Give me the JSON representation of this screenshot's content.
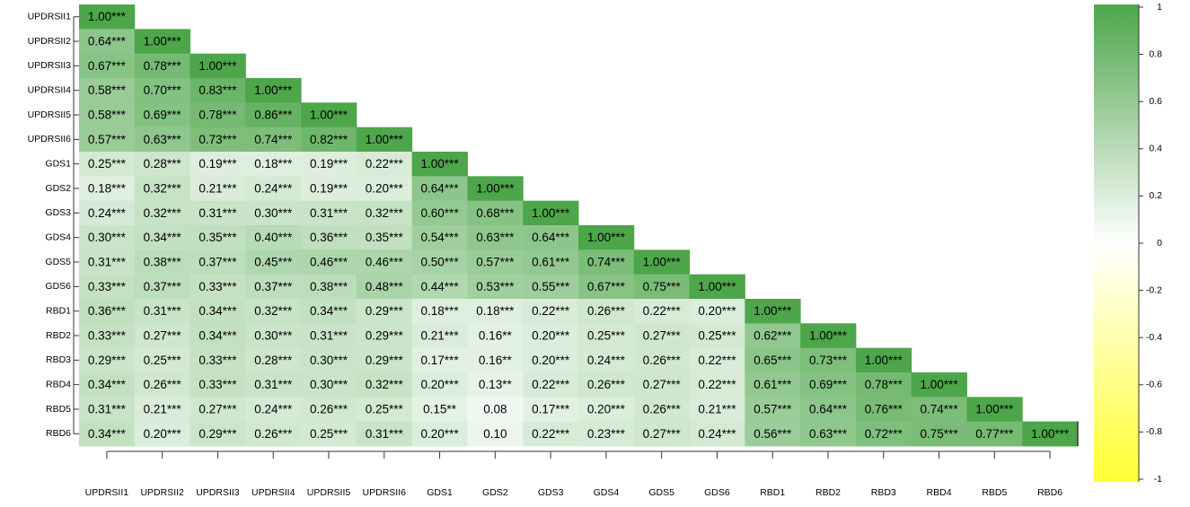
{
  "chart_data": {
    "type": "heatmap",
    "categories": [
      "UPDRSII1",
      "UPDRSII2",
      "UPDRSII3",
      "UPDRSII4",
      "UPDRSII5",
      "UPDRSII6",
      "GDS1",
      "GDS2",
      "GDS3",
      "GDS4",
      "GDS5",
      "GDS6",
      "RBD1",
      "RBD2",
      "RBD3",
      "RBD4",
      "RBD5",
      "RBD6"
    ],
    "values": [
      [
        1
      ],
      [
        0.64,
        1
      ],
      [
        0.67,
        0.78,
        1
      ],
      [
        0.58,
        0.7,
        0.83,
        1
      ],
      [
        0.58,
        0.69,
        0.78,
        0.86,
        1
      ],
      [
        0.57,
        0.63,
        0.73,
        0.74,
        0.82,
        1
      ],
      [
        0.25,
        0.28,
        0.19,
        0.18,
        0.19,
        0.22,
        1
      ],
      [
        0.18,
        0.32,
        0.21,
        0.24,
        0.19,
        0.2,
        0.64,
        1
      ],
      [
        0.24,
        0.32,
        0.31,
        0.3,
        0.31,
        0.32,
        0.6,
        0.68,
        1
      ],
      [
        0.3,
        0.34,
        0.35,
        0.4,
        0.36,
        0.35,
        0.54,
        0.63,
        0.64,
        1
      ],
      [
        0.31,
        0.38,
        0.37,
        0.45,
        0.46,
        0.46,
        0.5,
        0.57,
        0.61,
        0.74,
        1
      ],
      [
        0.33,
        0.37,
        0.33,
        0.37,
        0.38,
        0.48,
        0.44,
        0.53,
        0.55,
        0.67,
        0.75,
        1
      ],
      [
        0.36,
        0.31,
        0.34,
        0.32,
        0.34,
        0.29,
        0.18,
        0.18,
        0.22,
        0.26,
        0.22,
        0.2,
        1
      ],
      [
        0.33,
        0.27,
        0.34,
        0.3,
        0.31,
        0.29,
        0.21,
        0.16,
        0.2,
        0.25,
        0.27,
        0.25,
        0.62,
        1
      ],
      [
        0.29,
        0.25,
        0.33,
        0.28,
        0.3,
        0.29,
        0.17,
        0.16,
        0.2,
        0.24,
        0.26,
        0.22,
        0.65,
        0.73,
        1
      ],
      [
        0.34,
        0.26,
        0.33,
        0.31,
        0.3,
        0.32,
        0.2,
        0.13,
        0.22,
        0.26,
        0.27,
        0.22,
        0.61,
        0.69,
        0.78,
        1
      ],
      [
        0.31,
        0.21,
        0.27,
        0.24,
        0.26,
        0.25,
        0.15,
        0.08,
        0.17,
        0.2,
        0.26,
        0.21,
        0.57,
        0.64,
        0.76,
        0.74,
        1
      ],
      [
        0.34,
        0.2,
        0.29,
        0.26,
        0.25,
        0.31,
        0.2,
        0.1,
        0.22,
        0.23,
        0.27,
        0.24,
        0.56,
        0.63,
        0.72,
        0.75,
        0.77,
        1
      ]
    ],
    "value_labels": [
      [
        "1.00***"
      ],
      [
        "0.64***",
        "1.00***"
      ],
      [
        "0.67***",
        "0.78***",
        "1.00***"
      ],
      [
        "0.58***",
        "0.70***",
        "0.83***",
        "1.00***"
      ],
      [
        "0.58***",
        "0.69***",
        "0.78***",
        "0.86***",
        "1.00***"
      ],
      [
        "0.57***",
        "0.63***",
        "0.73***",
        "0.74***",
        "0.82***",
        "1.00***"
      ],
      [
        "0.25***",
        "0.28***",
        "0.19***",
        "0.18***",
        "0.19***",
        "0.22***",
        "1.00***"
      ],
      [
        "0.18***",
        "0.32***",
        "0.21***",
        "0.24***",
        "0.19***",
        "0.20***",
        "0.64***",
        "1.00***"
      ],
      [
        "0.24***",
        "0.32***",
        "0.31***",
        "0.30***",
        "0.31***",
        "0.32***",
        "0.60***",
        "0.68***",
        "1.00***"
      ],
      [
        "0.30***",
        "0.34***",
        "0.35***",
        "0.40***",
        "0.36***",
        "0.35***",
        "0.54***",
        "0.63***",
        "0.64***",
        "1.00***"
      ],
      [
        "0.31***",
        "0.38***",
        "0.37***",
        "0.45***",
        "0.46***",
        "0.46***",
        "0.50***",
        "0.57***",
        "0.61***",
        "0.74***",
        "1.00***"
      ],
      [
        "0.33***",
        "0.37***",
        "0.33***",
        "0.37***",
        "0.38***",
        "0.48***",
        "0.44***",
        "0.53***",
        "0.55***",
        "0.67***",
        "0.75***",
        "1.00***"
      ],
      [
        "0.36***",
        "0.31***",
        "0.34***",
        "0.32***",
        "0.34***",
        "0.29***",
        "0.18***",
        "0.18***",
        "0.22***",
        "0.26***",
        "0.22***",
        "0.20***",
        "1.00***"
      ],
      [
        "0.33***",
        "0.27***",
        "0.34***",
        "0.30***",
        "0.31***",
        "0.29***",
        "0.21***",
        "0.16**",
        "0.20***",
        "0.25***",
        "0.27***",
        "0.25***",
        "0.62***",
        "1.00***"
      ],
      [
        "0.29***",
        "0.25***",
        "0.33***",
        "0.28***",
        "0.30***",
        "0.29***",
        "0.17***",
        "0.16**",
        "0.20***",
        "0.24***",
        "0.26***",
        "0.22***",
        "0.65***",
        "0.73***",
        "1.00***"
      ],
      [
        "0.34***",
        "0.26***",
        "0.33***",
        "0.31***",
        "0.30***",
        "0.32***",
        "0.20***",
        "0.13**",
        "0.22***",
        "0.26***",
        "0.27***",
        "0.22***",
        "0.61***",
        "0.69***",
        "0.78***",
        "1.00***"
      ],
      [
        "0.31***",
        "0.21***",
        "0.27***",
        "0.24***",
        "0.26***",
        "0.25***",
        "0.15**",
        "0.08",
        "0.17***",
        "0.20***",
        "0.26***",
        "0.21***",
        "0.57***",
        "0.64***",
        "0.76***",
        "0.74***",
        "1.00***"
      ],
      [
        "0.34***",
        "0.20***",
        "0.29***",
        "0.26***",
        "0.25***",
        "0.31***",
        "0.20***",
        "0.10",
        "0.22***",
        "0.23***",
        "0.27***",
        "0.24***",
        "0.56***",
        "0.63***",
        "0.72***",
        "0.75***",
        "0.77***",
        "1.00***"
      ]
    ],
    "colorscale": [
      "#ffff33",
      "#ffffff",
      "#4da64a"
    ],
    "zlim": [
      -1,
      1
    ],
    "zticks": [
      1,
      0.8,
      0.6,
      0.4,
      0.2,
      0,
      -0.2,
      -0.4,
      -0.6,
      -0.8,
      -1
    ]
  }
}
